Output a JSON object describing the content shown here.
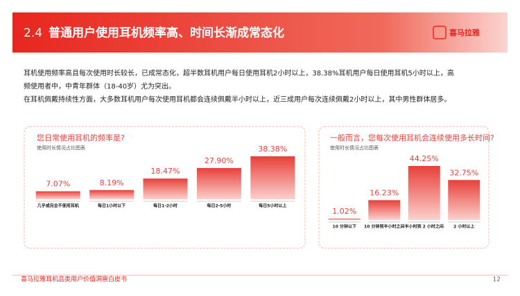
{
  "header": {
    "section": "2.4",
    "title": "普通用户使用耳机频率高、时间长渐成常态化",
    "logo": "喜马拉雅"
  },
  "intro": [
    "耳机使用频率高且每次使用时长较长，已成常态化，超半数耳机用户每日使用耳机2小时以上，38.38%耳机用户每日使用耳机5小时以上，高",
    "频使用者中，中青年群体（18-40岁）尤为突出。",
    "在耳机佩戴持续性方面，大多数耳机用户每次使用耳机都会连续佩戴半小时以上，近三成用户每次连续佩戴2小时以上，其中男性群体居多。"
  ],
  "chart_data": [
    {
      "type": "bar",
      "title": "您日常使用耳机的频率是?",
      "subtitle": "使用时长情况占比图表",
      "color": "#e8403a",
      "categories": [
        "几乎或完全不使用耳机",
        "每日1小时以下",
        "每日1-2小时",
        "每日2-5小时",
        "每日5小时以上"
      ],
      "values": [
        7.07,
        8.19,
        18.47,
        27.9,
        38.38
      ],
      "value_labels": [
        "7.07%",
        "8.19%",
        "18.47%",
        "27.90%",
        "38.38%"
      ]
    },
    {
      "type": "bar",
      "title": "一般而言，您每次使用耳机会连续使用多长时间?",
      "subtitle": "使用时长情况占比图表",
      "color": "#e8403a",
      "categories": [
        "10 分钟以下",
        "10 分钟到半小时之间",
        "半小时到 2 小时之间",
        "2 小时以上"
      ],
      "values": [
        1.02,
        16.23,
        44.25,
        32.75
      ],
      "value_labels": [
        "1.02%",
        "16.23%",
        "44.25%",
        "32.75%"
      ]
    }
  ],
  "footer": {
    "text": "喜马拉雅耳机品类用户价值洞察白皮书",
    "page": "12"
  }
}
